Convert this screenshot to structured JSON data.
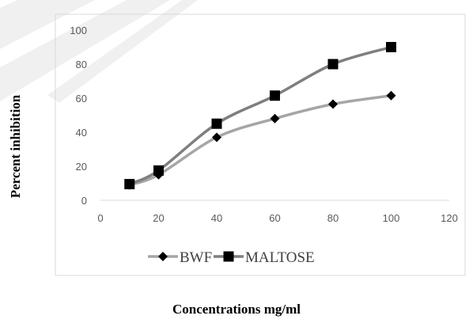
{
  "chart_data": {
    "type": "line",
    "title": "",
    "xlabel": "Concentrations mg/ml",
    "ylabel": "Percent inhibition",
    "xlim": [
      0,
      120
    ],
    "ylim": [
      0,
      100
    ],
    "xticks": [
      0,
      20,
      40,
      60,
      80,
      100,
      120
    ],
    "yticks": [
      0,
      20,
      40,
      60,
      80,
      100
    ],
    "grid": false,
    "legend_position": "bottom",
    "series": [
      {
        "name": "BWF",
        "marker": "diamond",
        "color": "#a6a6a6",
        "x": [
          10,
          20,
          40,
          60,
          80,
          100
        ],
        "y": [
          9,
          15,
          37,
          48,
          56.5,
          61.5
        ]
      },
      {
        "name": "MALTOSE",
        "marker": "square",
        "color": "#7f7f7f",
        "x": [
          10,
          20,
          40,
          60,
          80,
          100
        ],
        "y": [
          9.5,
          17.5,
          45,
          61.5,
          80,
          90
        ]
      }
    ]
  }
}
